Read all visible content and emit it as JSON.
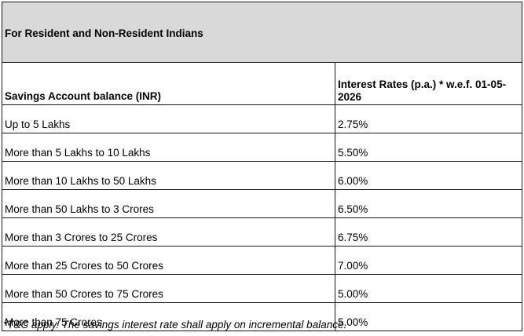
{
  "table": {
    "title": "For Resident and Non-Resident Indians",
    "headers": {
      "balance": "Savings Account balance (INR)",
      "rate": "Interest Rates (p.a.) * w.e.f. 01-05-2026"
    },
    "rows": [
      {
        "balance": "Up to 5 Lakhs",
        "rate": "2.75%"
      },
      {
        "balance": "More than 5 Lakhs to 10 Lakhs",
        "rate": "5.50%"
      },
      {
        "balance": "More than 10 Lakhs to 50 Lakhs",
        "rate": "6.00%"
      },
      {
        "balance": "More than 50 Lakhs to 3 Crores",
        "rate": "6.50%"
      },
      {
        "balance": "More than 3 Crores to 25 Crores",
        "rate": "6.75%"
      },
      {
        "balance": "More than 25 Crores to 50 Crores",
        "rate": "7.00%"
      },
      {
        "balance": "More than 50 Crores to 75 Crores",
        "rate": "5.00%"
      },
      {
        "balance": "More than 75 Crores",
        "rate": "5.00%"
      }
    ]
  },
  "footnote": "*T&C apply. The savings interest rate shall apply on incremental balance.",
  "colors": {
    "title_background": "#d9d9d9",
    "border": "#1a1a1a"
  }
}
